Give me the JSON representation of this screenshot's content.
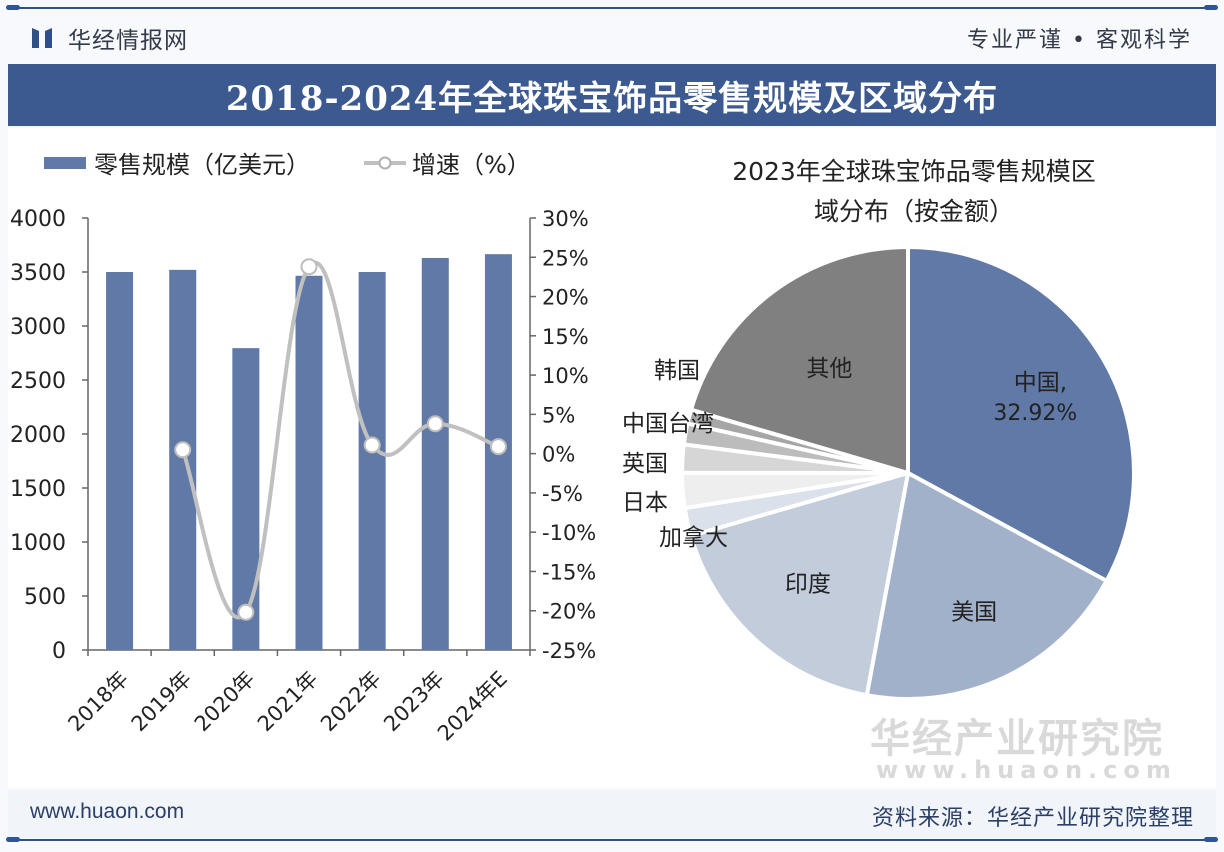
{
  "header": {
    "brand_name": "华经情报网",
    "slogan": "专业严谨 • 客观科学",
    "title": "2018-2024年全球珠宝饰品零售规模及区域分布"
  },
  "footer": {
    "url": "www.huaon.com",
    "source": "资料来源：华经产业研究院整理"
  },
  "watermark": {
    "name": "华经产业研究院",
    "url": "www.huaon.com"
  },
  "colors": {
    "accent": "#3c5a8f",
    "bar": "#6079a6",
    "line": "#c0c0c0"
  },
  "chart_data": [
    {
      "type": "bar",
      "combo": "bar+line",
      "categories": [
        "2018年",
        "2019年",
        "2020年",
        "2021年",
        "2022年",
        "2023年",
        "2024年E"
      ],
      "series": [
        {
          "name": "零售规模（亿美元）",
          "type": "bar",
          "axis": "left",
          "values": [
            3500,
            3520,
            2795,
            3465,
            3500,
            3630,
            3665
          ]
        },
        {
          "name": "增速（%）",
          "type": "line",
          "axis": "right",
          "values": [
            null,
            0.5,
            -20.2,
            23.8,
            1.1,
            3.8,
            0.9
          ]
        }
      ],
      "left_axis": {
        "ylim": [
          0,
          4000
        ],
        "ticks": [
          "0",
          "500",
          "1000",
          "1500",
          "2000",
          "2500",
          "3000",
          "3500",
          "4000"
        ]
      },
      "right_axis": {
        "ylim": [
          -25,
          30
        ],
        "ticks": [
          "-25%",
          "-20%",
          "-15%",
          "-10%",
          "-5%",
          "0%",
          "5%",
          "10%",
          "15%",
          "20%",
          "25%",
          "30%"
        ]
      },
      "legend": [
        {
          "label": "零售规模（亿美元）"
        },
        {
          "label": "增速（%）"
        }
      ],
      "legend_position": "top",
      "grid": false
    },
    {
      "type": "pie",
      "title_line1": "2023年全球珠宝饰品零售规模区",
      "title_line2": "域分布（按金额）",
      "slices": [
        {
          "label": "中国",
          "value": 32.92,
          "display": "中国,",
          "value_label": "32.92%",
          "color": "#6079a6"
        },
        {
          "label": "美国",
          "value": 20.0,
          "color": "#a2b1ca"
        },
        {
          "label": "印度",
          "value": 17.6,
          "color": "#c2ccdb"
        },
        {
          "label": "加拿大",
          "value": 2.0,
          "color": "#dbe1ea"
        },
        {
          "label": "日本",
          "value": 2.5,
          "color": "#eeeeee"
        },
        {
          "label": "英国",
          "value": 2.0,
          "color": "#d6d6d6"
        },
        {
          "label": "中国台湾",
          "value": 1.5,
          "color": "#bcbcbc"
        },
        {
          "label": "韩国",
          "value": 1.0,
          "color": "#a6a6a6"
        },
        {
          "label": "其他",
          "value": 20.48,
          "color": "#808080"
        }
      ]
    }
  ]
}
